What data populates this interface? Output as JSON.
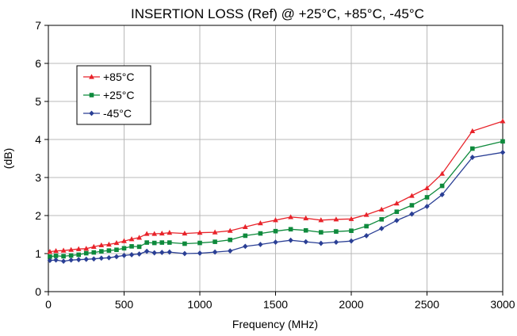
{
  "chart_data": {
    "type": "line",
    "title": "INSERTION LOSS (Ref) @ +25°C, +85°C, -45°C",
    "xlabel": "Frequency (MHz)",
    "ylabel": "(dB)",
    "xlim": [
      0,
      3000
    ],
    "ylim": [
      0,
      7
    ],
    "xticks": [
      0,
      500,
      1000,
      1500,
      2000,
      2500,
      3000
    ],
    "yticks": [
      0,
      1,
      2,
      3,
      4,
      5,
      6,
      7
    ],
    "grid": true,
    "legend_position": "top-left",
    "x": [
      10,
      50,
      100,
      150,
      200,
      250,
      300,
      350,
      400,
      450,
      500,
      550,
      600,
      650,
      700,
      750,
      800,
      900,
      1000,
      1100,
      1200,
      1300,
      1400,
      1500,
      1600,
      1700,
      1800,
      1900,
      2000,
      2100,
      2200,
      2300,
      2400,
      2500,
      2600,
      2800,
      3000
    ],
    "series": [
      {
        "name": "+85°C",
        "color": "#e8232a",
        "marker": "triangle",
        "values": [
          1.05,
          1.07,
          1.08,
          1.1,
          1.12,
          1.13,
          1.18,
          1.22,
          1.24,
          1.28,
          1.33,
          1.38,
          1.42,
          1.52,
          1.52,
          1.53,
          1.55,
          1.53,
          1.55,
          1.56,
          1.6,
          1.7,
          1.8,
          1.88,
          1.96,
          1.93,
          1.88,
          1.9,
          1.91,
          2.02,
          2.16,
          2.32,
          2.52,
          2.72,
          3.1,
          4.22,
          4.48
        ]
      },
      {
        "name": "+25°C",
        "color": "#0e8a3c",
        "marker": "square",
        "values": [
          0.92,
          0.94,
          0.93,
          0.95,
          0.97,
          1.01,
          1.03,
          1.06,
          1.08,
          1.1,
          1.14,
          1.19,
          1.18,
          1.29,
          1.28,
          1.29,
          1.29,
          1.26,
          1.28,
          1.31,
          1.36,
          1.47,
          1.53,
          1.59,
          1.64,
          1.61,
          1.56,
          1.58,
          1.6,
          1.72,
          1.9,
          2.1,
          2.27,
          2.48,
          2.78,
          3.76,
          3.95
        ]
      },
      {
        "name": "-45°C",
        "color": "#2a3f95",
        "marker": "diamond",
        "values": [
          0.82,
          0.83,
          0.8,
          0.83,
          0.84,
          0.85,
          0.86,
          0.88,
          0.89,
          0.92,
          0.95,
          0.97,
          0.99,
          1.06,
          1.02,
          1.03,
          1.04,
          1.0,
          1.01,
          1.04,
          1.07,
          1.19,
          1.24,
          1.3,
          1.35,
          1.31,
          1.27,
          1.3,
          1.33,
          1.47,
          1.66,
          1.87,
          2.04,
          2.24,
          2.55,
          3.53,
          3.66
        ]
      }
    ]
  }
}
